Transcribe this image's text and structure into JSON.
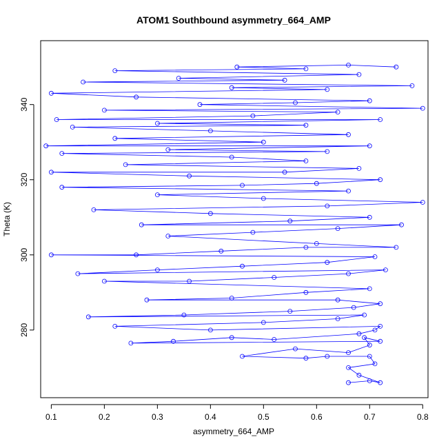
{
  "chart_data": {
    "type": "line",
    "title": "ATOM1 Southbound asymmetry_664_AMP",
    "xlabel": "asymmetry_664_AMP",
    "ylabel": "Theta (K)",
    "xlim": [
      0.08,
      0.81
    ],
    "ylim": [
      262,
      357
    ],
    "x_ticks": [
      0.1,
      0.2,
      0.3,
      0.4,
      0.5,
      0.6,
      0.7,
      0.8
    ],
    "x_tick_labels": [
      "0.1",
      "0.2",
      "0.3",
      "0.4",
      "0.5",
      "0.6",
      "0.7",
      "0.8"
    ],
    "y_ticks": [
      280,
      300,
      320,
      340
    ],
    "y_tick_labels": [
      "280",
      "300",
      "320",
      "340"
    ],
    "grid": false,
    "markers": "open-circle",
    "series": [
      {
        "color": "#0000ff",
        "points": [
          [
            0.66,
            266
          ],
          [
            0.7,
            266.5
          ],
          [
            0.72,
            266
          ],
          [
            0.68,
            268
          ],
          [
            0.66,
            270
          ],
          [
            0.71,
            271
          ],
          [
            0.7,
            273
          ],
          [
            0.62,
            273
          ],
          [
            0.58,
            272.5
          ],
          [
            0.46,
            273
          ],
          [
            0.56,
            275
          ],
          [
            0.66,
            274
          ],
          [
            0.7,
            276
          ],
          [
            0.69,
            278
          ],
          [
            0.72,
            277
          ],
          [
            0.25,
            276.5
          ],
          [
            0.33,
            277
          ],
          [
            0.44,
            278
          ],
          [
            0.52,
            277.5
          ],
          [
            0.68,
            279
          ],
          [
            0.71,
            280
          ],
          [
            0.72,
            281
          ],
          [
            0.4,
            280
          ],
          [
            0.22,
            281
          ],
          [
            0.5,
            282
          ],
          [
            0.64,
            283
          ],
          [
            0.69,
            284
          ],
          [
            0.17,
            283.5
          ],
          [
            0.35,
            284
          ],
          [
            0.55,
            285
          ],
          [
            0.67,
            286
          ],
          [
            0.72,
            287
          ],
          [
            0.64,
            288
          ],
          [
            0.28,
            288
          ],
          [
            0.44,
            288.5
          ],
          [
            0.58,
            290
          ],
          [
            0.7,
            291
          ],
          [
            0.2,
            293
          ],
          [
            0.36,
            293
          ],
          [
            0.52,
            294
          ],
          [
            0.66,
            295
          ],
          [
            0.73,
            296
          ],
          [
            0.15,
            295
          ],
          [
            0.3,
            296
          ],
          [
            0.46,
            297
          ],
          [
            0.62,
            298
          ],
          [
            0.71,
            299.5
          ],
          [
            0.1,
            300
          ],
          [
            0.26,
            300
          ],
          [
            0.42,
            301
          ],
          [
            0.58,
            302
          ],
          [
            0.75,
            302
          ],
          [
            0.6,
            303
          ],
          [
            0.32,
            305
          ],
          [
            0.48,
            306
          ],
          [
            0.64,
            307
          ],
          [
            0.76,
            308
          ],
          [
            0.27,
            308
          ],
          [
            0.55,
            309
          ],
          [
            0.7,
            310
          ],
          [
            0.4,
            311
          ],
          [
            0.18,
            312
          ],
          [
            0.62,
            313
          ],
          [
            0.8,
            314
          ],
          [
            0.5,
            315
          ],
          [
            0.3,
            316
          ],
          [
            0.66,
            317
          ],
          [
            0.12,
            318
          ],
          [
            0.46,
            318.5
          ],
          [
            0.6,
            319
          ],
          [
            0.72,
            320
          ],
          [
            0.36,
            321
          ],
          [
            0.1,
            322
          ],
          [
            0.54,
            322
          ],
          [
            0.68,
            323
          ],
          [
            0.24,
            324
          ],
          [
            0.58,
            325
          ],
          [
            0.44,
            326
          ],
          [
            0.12,
            327
          ],
          [
            0.62,
            327.5
          ],
          [
            0.32,
            328
          ],
          [
            0.7,
            329
          ],
          [
            0.09,
            329
          ],
          [
            0.5,
            330
          ],
          [
            0.22,
            331
          ],
          [
            0.66,
            332
          ],
          [
            0.4,
            333
          ],
          [
            0.14,
            334
          ],
          [
            0.58,
            334.5
          ],
          [
            0.3,
            335
          ],
          [
            0.72,
            336
          ],
          [
            0.11,
            336
          ],
          [
            0.48,
            337
          ],
          [
            0.64,
            338
          ],
          [
            0.2,
            338.5
          ],
          [
            0.8,
            339
          ],
          [
            0.38,
            340
          ],
          [
            0.56,
            340.5
          ],
          [
            0.7,
            341
          ],
          [
            0.26,
            342
          ],
          [
            0.1,
            343
          ],
          [
            0.62,
            344
          ],
          [
            0.44,
            344.5
          ],
          [
            0.78,
            345
          ],
          [
            0.16,
            346
          ],
          [
            0.54,
            346.5
          ],
          [
            0.34,
            347
          ],
          [
            0.68,
            348
          ],
          [
            0.22,
            349
          ],
          [
            0.58,
            349.5
          ],
          [
            0.45,
            350
          ],
          [
            0.66,
            350.5
          ],
          [
            0.75,
            350
          ]
        ]
      }
    ]
  }
}
